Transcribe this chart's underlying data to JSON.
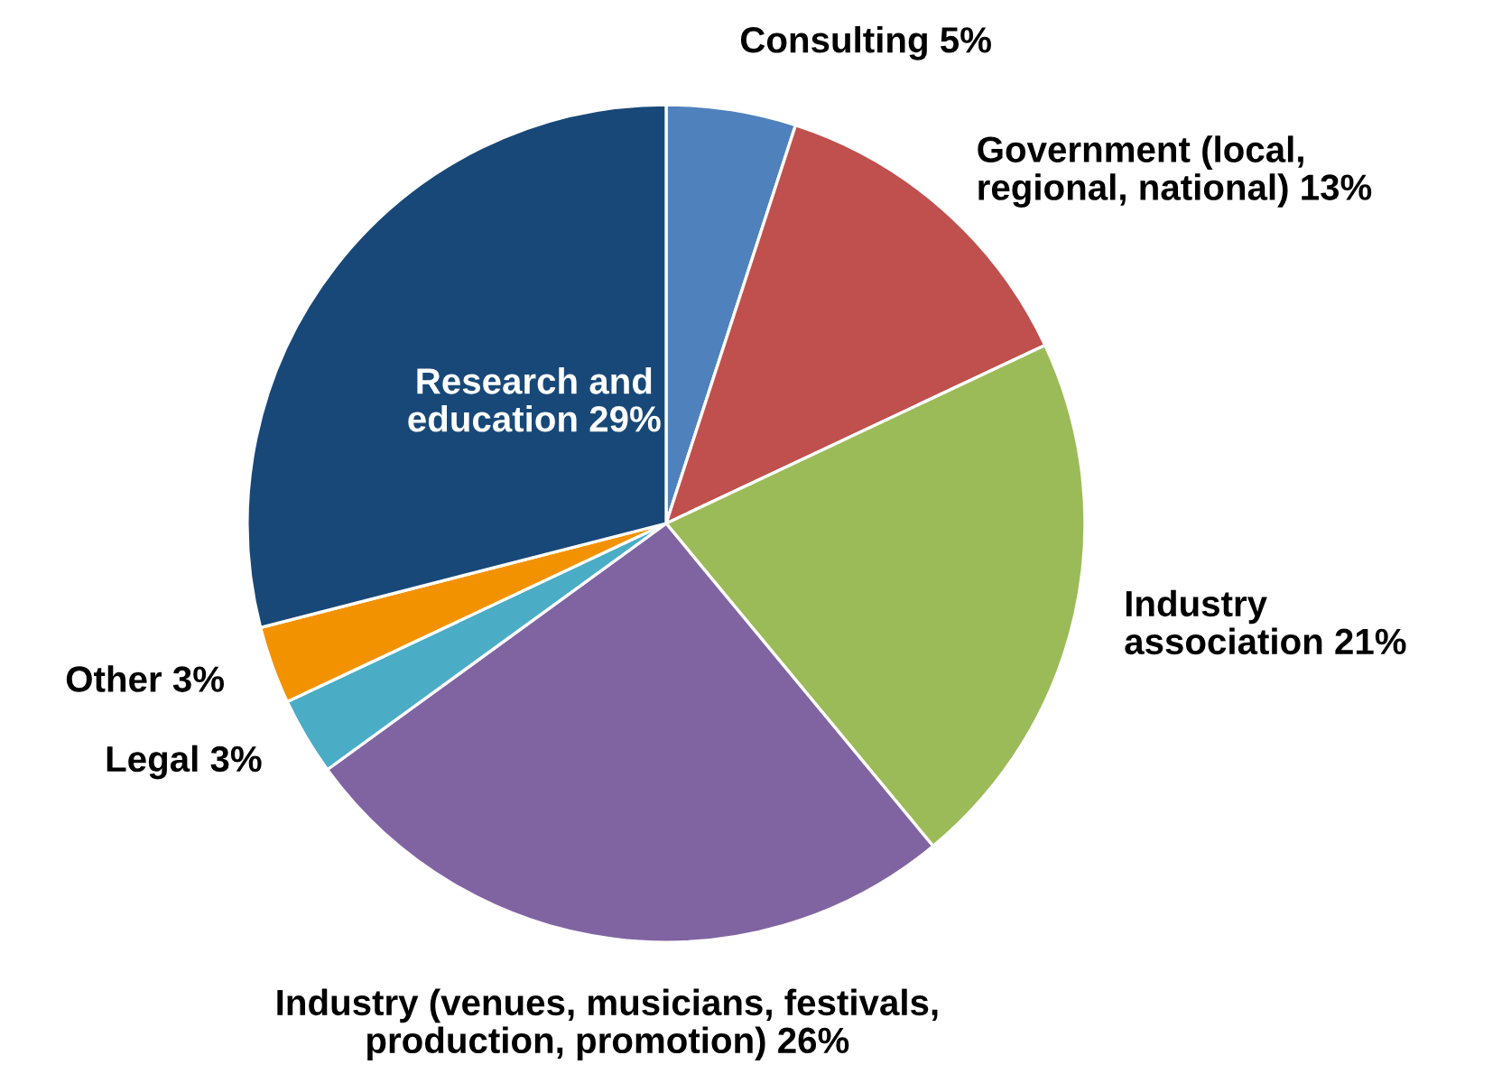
{
  "chart_data": {
    "type": "pie",
    "categories": [
      "Consulting 5%",
      "Government (local,\nregional, national) 13%",
      "Industry\nassociation 21%",
      "Industry (venues, musicians, festivals,\nproduction, promotion) 26%",
      "Legal 3%",
      "Other 3%",
      "Research and\neducation 29%"
    ],
    "values": [
      5,
      13,
      21,
      26,
      3,
      3,
      29
    ],
    "colors": [
      "#4f81bd",
      "#c0504d",
      "#9bbb59",
      "#8064a2",
      "#4bacc6",
      "#f39200",
      "#184878"
    ]
  }
}
